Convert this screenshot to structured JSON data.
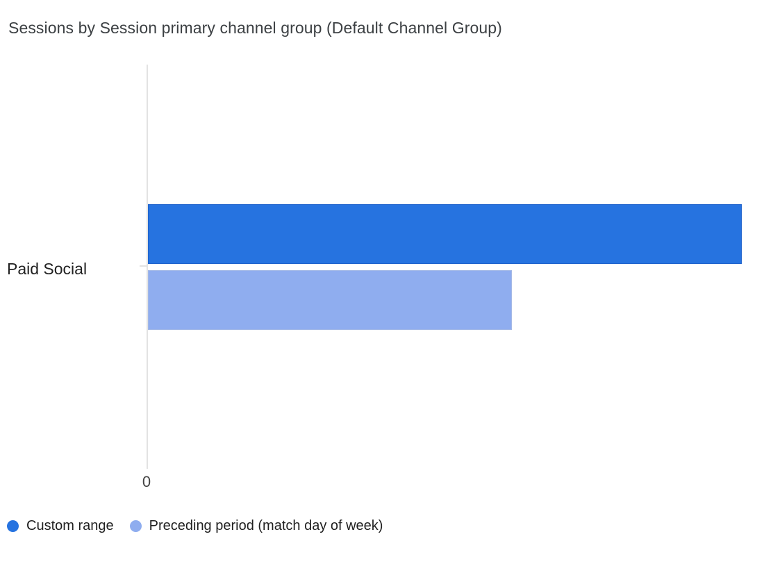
{
  "chart_data": {
    "type": "bar",
    "orientation": "horizontal",
    "title": "Sessions by Session primary channel group (Default Channel Group)",
    "categories": [
      "Paid Social"
    ],
    "series": [
      {
        "name": "Custom range",
        "color": "#2673e0",
        "relative_values": [
          1.0
        ]
      },
      {
        "name": "Preceding period (match day of week)",
        "color": "#8fadef",
        "relative_values": [
          0.613
        ]
      }
    ],
    "x_axis": {
      "tick_labels": [
        "0"
      ],
      "min": 0,
      "max_labeled": false
    },
    "y_axis": {
      "label": ""
    },
    "grid": "off",
    "legend_position": "bottom"
  }
}
